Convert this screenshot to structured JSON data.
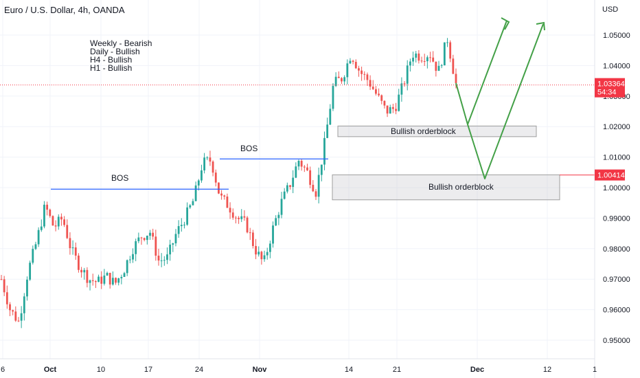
{
  "chart_data": {
    "type": "candlestick",
    "title": "Euro / U.S. Dollar, 4h, OANDA",
    "currency": "USD",
    "y_ticks": [
      "1.05000",
      "1.04000",
      "1.03000",
      "1.02000",
      "1.01000",
      "1.00000",
      "0.99000",
      "0.98000",
      "0.97000",
      "0.96000",
      "0.95000"
    ],
    "ylim": [
      0.9455,
      1.0615
    ],
    "x_ticks": [
      {
        "label": "6",
        "bold": false
      },
      {
        "label": "Oct",
        "bold": true
      },
      {
        "label": "10",
        "bold": false
      },
      {
        "label": "17",
        "bold": false
      },
      {
        "label": "24",
        "bold": false
      },
      {
        "label": "Nov",
        "bold": true
      },
      {
        "label": "14",
        "bold": false
      },
      {
        "label": "21",
        "bold": false
      },
      {
        "label": "Dec",
        "bold": true
      },
      {
        "label": "12",
        "bold": false
      },
      {
        "label": "1",
        "bold": false
      }
    ],
    "annotations_text": [
      "Weekly - Bearish",
      "Daily - Bullish",
      "H4 - Bullish",
      "H1 - Bullish"
    ],
    "bos_labels": [
      "BOS",
      "BOS"
    ],
    "orderblocks": [
      {
        "label": "Bullish orderblock",
        "top": 1.0202,
        "bottom": 1.0167
      },
      {
        "label": "Bullish orderblock",
        "top": 1.0042,
        "bottom": 0.996
      }
    ],
    "bos_levels": [
      0.9995,
      1.0094
    ],
    "current_price": {
      "value": "1.03364",
      "countdown": "54:34",
      "color": "#f23645"
    },
    "level_marker": {
      "value": "1.00414",
      "color": "#f23645"
    },
    "projection_color": "#43a047",
    "bull_color": "#26a69a",
    "bear_color": "#ef5350",
    "price_path": [
      [
        0.97,
        0.96,
        0.956,
        0.972,
        0.982,
        0.994,
        0.987,
        0.99,
        0.9795,
        0.974,
        0.97,
        0.969,
        0.971,
        0.9685,
        0.973,
        0.98,
        0.984,
        0.9855,
        0.976,
        0.977,
        0.985,
        0.99,
        0.996,
        1.008,
        1.009,
        0.997,
        0.994,
        0.99,
        0.988,
        0.98,
        0.975,
        0.986,
        0.995,
        1.001,
        1.009,
        1.005,
        0.9985,
        1.015,
        1.034,
        1.036,
        1.044,
        1.038,
        1.035,
        1.03,
        1.025,
        1.026,
        1.034,
        1.044,
        1.043,
        1.044,
        1.038,
        1.049,
        1.034
      ]
    ]
  }
}
